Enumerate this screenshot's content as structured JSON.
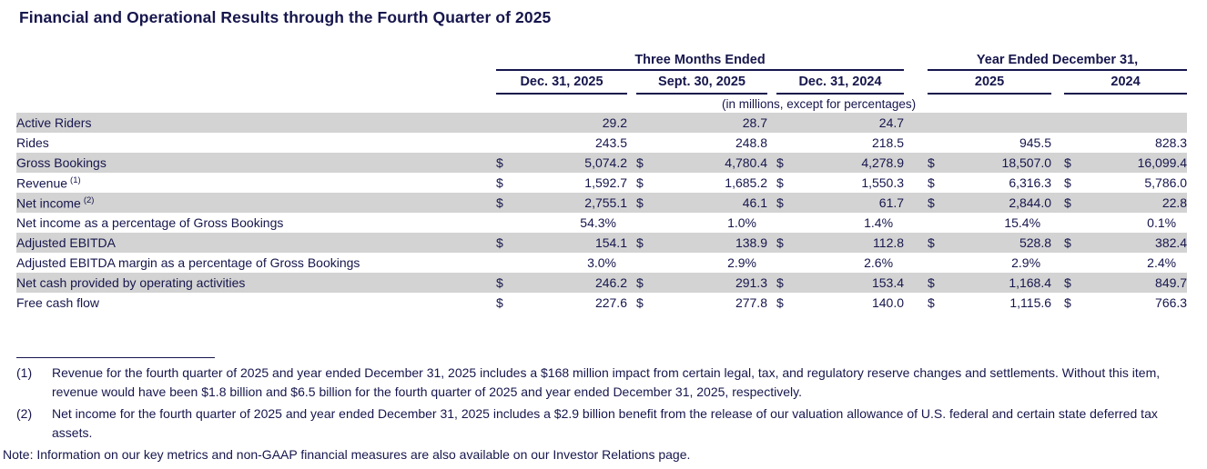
{
  "title": "Financial and Operational Results through the Fourth Quarter of 2025",
  "colors": {
    "text_navy": "#16164d",
    "row_shade": "#d3d3d3"
  },
  "table": {
    "groups": [
      {
        "label": "Three Months Ended"
      },
      {
        "label": "Year Ended December 31,"
      }
    ],
    "columns": [
      "Dec. 31, 2025",
      "Sept. 30, 2025",
      "Dec. 31, 2024",
      "2025",
      "2024"
    ],
    "units_note": "(in millions, except for percentages)",
    "rows": [
      {
        "label": "Active Riders",
        "sup": "",
        "shaded": true,
        "cells": [
          {
            "d": "",
            "v": "29.2"
          },
          {
            "d": "",
            "v": "28.7"
          },
          {
            "d": "",
            "v": "24.7"
          },
          {
            "d": "",
            "v": ""
          },
          {
            "d": "",
            "v": ""
          }
        ]
      },
      {
        "label": "Rides",
        "sup": "",
        "shaded": false,
        "cells": [
          {
            "d": "",
            "v": "243.5"
          },
          {
            "d": "",
            "v": "248.8"
          },
          {
            "d": "",
            "v": "218.5"
          },
          {
            "d": "",
            "v": "945.5"
          },
          {
            "d": "",
            "v": "828.3"
          }
        ]
      },
      {
        "label": "Gross Bookings",
        "sup": "",
        "shaded": true,
        "cells": [
          {
            "d": "$",
            "v": "5,074.2"
          },
          {
            "d": "$",
            "v": "4,780.4"
          },
          {
            "d": "$",
            "v": "4,278.9"
          },
          {
            "d": "$",
            "v": "18,507.0"
          },
          {
            "d": "$",
            "v": "16,099.4"
          }
        ]
      },
      {
        "label": "Revenue",
        "sup": "(1)",
        "shaded": false,
        "cells": [
          {
            "d": "$",
            "v": "1,592.7"
          },
          {
            "d": "$",
            "v": "1,685.2"
          },
          {
            "d": "$",
            "v": "1,550.3"
          },
          {
            "d": "$",
            "v": "6,316.3"
          },
          {
            "d": "$",
            "v": "5,786.0"
          }
        ]
      },
      {
        "label": "Net income",
        "sup": "(2)",
        "shaded": true,
        "cells": [
          {
            "d": "$",
            "v": "2,755.1"
          },
          {
            "d": "$",
            "v": "46.1"
          },
          {
            "d": "$",
            "v": "61.7"
          },
          {
            "d": "$",
            "v": "2,844.0"
          },
          {
            "d": "$",
            "v": "22.8"
          }
        ]
      },
      {
        "label": "Net income as a percentage of Gross Bookings",
        "sup": "",
        "shaded": false,
        "cells": [
          {
            "d": "",
            "v": "54.3%"
          },
          {
            "d": "",
            "v": "1.0%"
          },
          {
            "d": "",
            "v": "1.4%"
          },
          {
            "d": "",
            "v": "15.4%"
          },
          {
            "d": "",
            "v": "0.1%"
          }
        ]
      },
      {
        "label": "Adjusted EBITDA",
        "sup": "",
        "shaded": true,
        "cells": [
          {
            "d": "$",
            "v": "154.1"
          },
          {
            "d": "$",
            "v": "138.9"
          },
          {
            "d": "$",
            "v": "112.8"
          },
          {
            "d": "$",
            "v": "528.8"
          },
          {
            "d": "$",
            "v": "382.4"
          }
        ]
      },
      {
        "label": "Adjusted EBITDA margin as a percentage of Gross Bookings",
        "sup": "",
        "shaded": false,
        "cells": [
          {
            "d": "",
            "v": "3.0%"
          },
          {
            "d": "",
            "v": "2.9%"
          },
          {
            "d": "",
            "v": "2.6%"
          },
          {
            "d": "",
            "v": "2.9%"
          },
          {
            "d": "",
            "v": "2.4%"
          }
        ]
      },
      {
        "label": "Net cash provided by operating activities",
        "sup": "",
        "shaded": true,
        "cells": [
          {
            "d": "$",
            "v": "246.2"
          },
          {
            "d": "$",
            "v": "291.3"
          },
          {
            "d": "$",
            "v": "153.4"
          },
          {
            "d": "$",
            "v": "1,168.4"
          },
          {
            "d": "$",
            "v": "849.7"
          }
        ]
      },
      {
        "label": "Free cash flow",
        "sup": "",
        "shaded": false,
        "cells": [
          {
            "d": "$",
            "v": "227.6"
          },
          {
            "d": "$",
            "v": "277.8"
          },
          {
            "d": "$",
            "v": "140.0"
          },
          {
            "d": "$",
            "v": "1,115.6"
          },
          {
            "d": "$",
            "v": "766.3"
          }
        ]
      }
    ]
  },
  "footnotes": [
    {
      "num": "(1)",
      "text": "Revenue for the fourth quarter of 2025 and year ended December 31, 2025 includes a $168 million impact from certain legal, tax, and regulatory reserve changes and settlements. Without this item, revenue would have been $1.8 billion and $6.5 billion for the fourth quarter of 2025 and year ended December 31, 2025, respectively."
    },
    {
      "num": "(2)",
      "text": "Net income for the fourth quarter of 2025 and year ended December 31, 2025 includes a $2.9 billion benefit from the release of our valuation allowance of U.S. federal and certain state deferred tax assets."
    }
  ],
  "bottom_note": "Note: Information on our key metrics and non-GAAP financial measures are also available on our Investor Relations page."
}
